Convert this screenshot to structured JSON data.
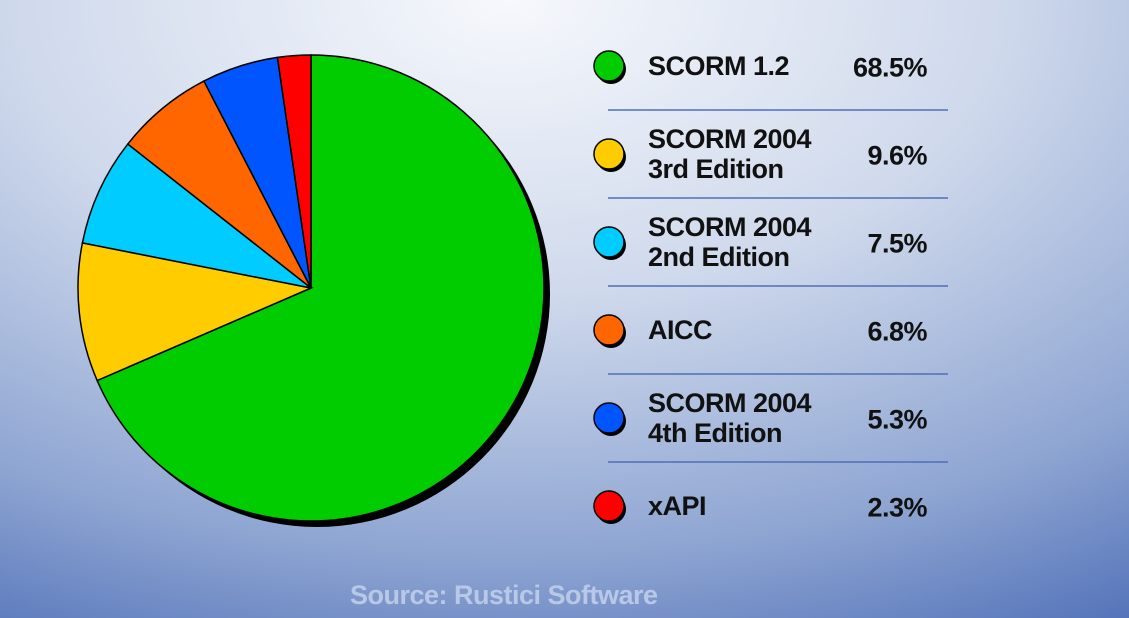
{
  "chart_data": {
    "type": "pie",
    "categories": [
      "SCORM 1.2",
      "SCORM 2004\n3rd Edition",
      "SCORM 2004\n2nd Edition",
      "AICC",
      "SCORM 2004\n4th Edition",
      "xAPI"
    ],
    "values": [
      68.5,
      9.6,
      7.5,
      6.8,
      5.3,
      2.3
    ],
    "value_labels": [
      "68.5%",
      "9.6%",
      "7.5%",
      "6.8%",
      "5.3%",
      "2.3%"
    ],
    "colors": [
      "#00cc00",
      "#ffcc00",
      "#00ccff",
      "#ff6600",
      "#0055ff",
      "#ff0000"
    ],
    "source": "Source: Rustici Software"
  }
}
